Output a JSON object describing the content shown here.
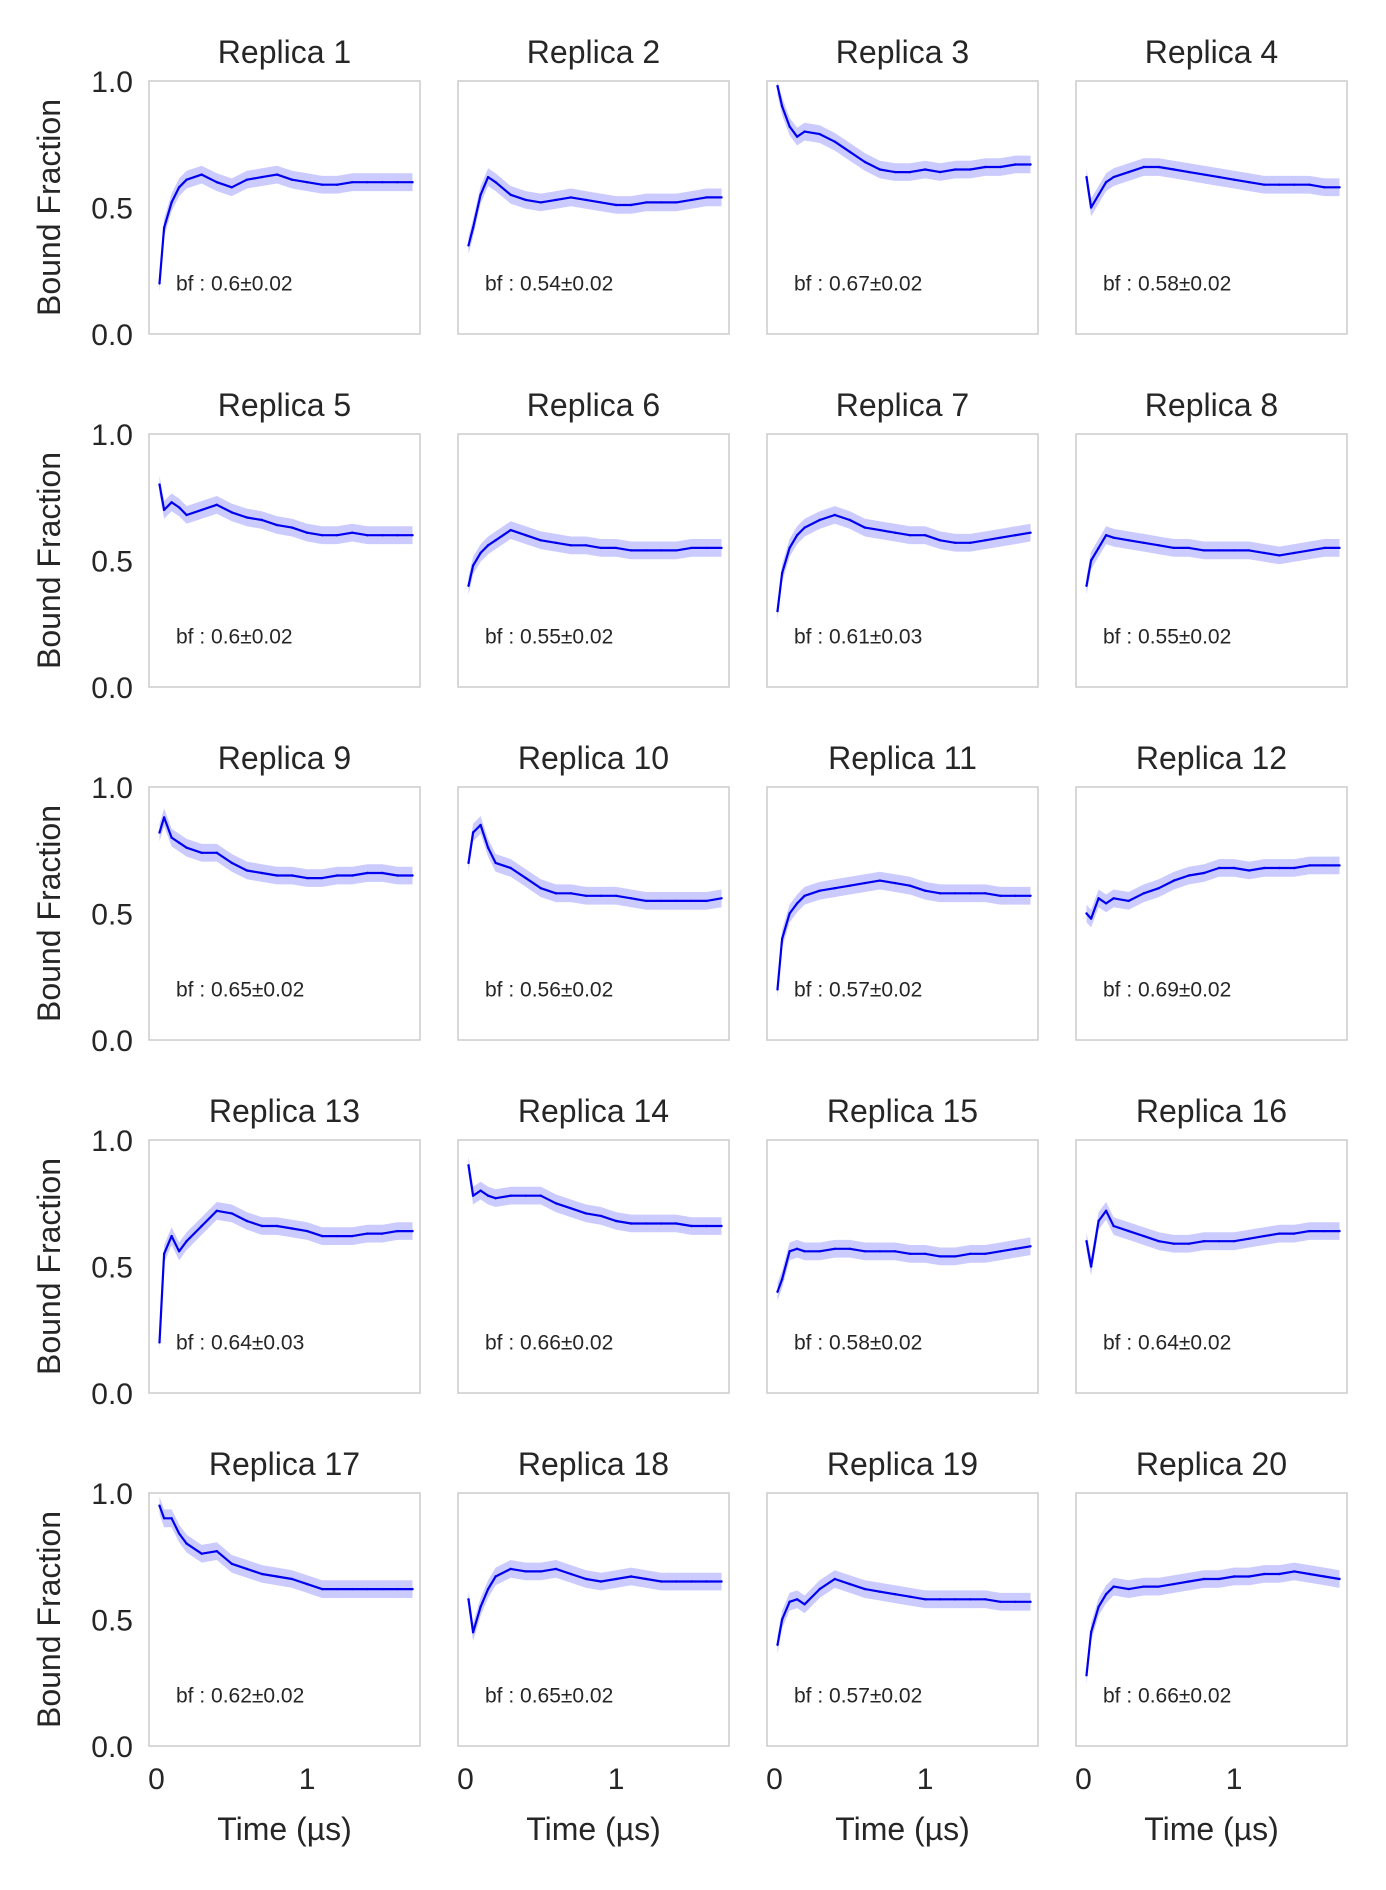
{
  "figure": {
    "ylabel": "Bound Fraction",
    "xlabel": "Time (µs)",
    "line_color": "#0000ee",
    "band_color": "#6b6bff",
    "frame_color": "#cccccc"
  },
  "chart_data": {
    "type": "line",
    "layout": "5x4 grid of small multiples, shared axes",
    "xlim": [
      -0.05,
      1.75
    ],
    "ylim": [
      0.0,
      1.0
    ],
    "xticks": [
      0,
      1
    ],
    "yticks": [
      0.0,
      0.5,
      1.0
    ],
    "xtick_labels": [
      "0",
      "1"
    ],
    "ytick_labels": [
      "0.0",
      "0.5",
      "1.0"
    ],
    "x": [
      0.02,
      0.05,
      0.1,
      0.15,
      0.2,
      0.3,
      0.4,
      0.5,
      0.6,
      0.7,
      0.8,
      0.9,
      1.0,
      1.1,
      1.2,
      1.3,
      1.4,
      1.5,
      1.6,
      1.7
    ],
    "series": [
      {
        "name": "Replica 1",
        "annotation": "bf : 0.6±0.02",
        "y": [
          0.2,
          0.42,
          0.52,
          0.58,
          0.61,
          0.63,
          0.6,
          0.58,
          0.61,
          0.62,
          0.63,
          0.61,
          0.6,
          0.59,
          0.59,
          0.6,
          0.6,
          0.6,
          0.6,
          0.6
        ]
      },
      {
        "name": "Replica 2",
        "annotation": "bf : 0.54±0.02",
        "y": [
          0.35,
          0.42,
          0.55,
          0.62,
          0.6,
          0.55,
          0.53,
          0.52,
          0.53,
          0.54,
          0.53,
          0.52,
          0.51,
          0.51,
          0.52,
          0.52,
          0.52,
          0.53,
          0.54,
          0.54
        ]
      },
      {
        "name": "Replica 3",
        "annotation": "bf : 0.67±0.02",
        "y": [
          0.98,
          0.9,
          0.82,
          0.78,
          0.8,
          0.79,
          0.76,
          0.72,
          0.68,
          0.65,
          0.64,
          0.64,
          0.65,
          0.64,
          0.65,
          0.65,
          0.66,
          0.66,
          0.67,
          0.67
        ]
      },
      {
        "name": "Replica 4",
        "annotation": "bf : 0.58±0.02",
        "y": [
          0.62,
          0.5,
          0.55,
          0.6,
          0.62,
          0.64,
          0.66,
          0.66,
          0.65,
          0.64,
          0.63,
          0.62,
          0.61,
          0.6,
          0.59,
          0.59,
          0.59,
          0.59,
          0.58,
          0.58
        ]
      },
      {
        "name": "Replica 5",
        "annotation": "bf : 0.6±0.02",
        "y": [
          0.8,
          0.7,
          0.73,
          0.71,
          0.68,
          0.7,
          0.72,
          0.69,
          0.67,
          0.66,
          0.64,
          0.63,
          0.61,
          0.6,
          0.6,
          0.61,
          0.6,
          0.6,
          0.6,
          0.6
        ]
      },
      {
        "name": "Replica 6",
        "annotation": "bf : 0.55±0.02",
        "y": [
          0.4,
          0.48,
          0.53,
          0.56,
          0.58,
          0.62,
          0.6,
          0.58,
          0.57,
          0.56,
          0.56,
          0.55,
          0.55,
          0.54,
          0.54,
          0.54,
          0.54,
          0.55,
          0.55,
          0.55
        ]
      },
      {
        "name": "Replica 7",
        "annotation": "bf : 0.61±0.03",
        "y": [
          0.3,
          0.45,
          0.55,
          0.6,
          0.63,
          0.66,
          0.68,
          0.66,
          0.63,
          0.62,
          0.61,
          0.6,
          0.6,
          0.58,
          0.57,
          0.57,
          0.58,
          0.59,
          0.6,
          0.61
        ]
      },
      {
        "name": "Replica 8",
        "annotation": "bf : 0.55±0.02",
        "y": [
          0.4,
          0.5,
          0.55,
          0.6,
          0.59,
          0.58,
          0.57,
          0.56,
          0.55,
          0.55,
          0.54,
          0.54,
          0.54,
          0.54,
          0.53,
          0.52,
          0.53,
          0.54,
          0.55,
          0.55
        ]
      },
      {
        "name": "Replica 9",
        "annotation": "bf : 0.65±0.02",
        "y": [
          0.82,
          0.88,
          0.8,
          0.78,
          0.76,
          0.74,
          0.74,
          0.7,
          0.67,
          0.66,
          0.65,
          0.65,
          0.64,
          0.64,
          0.65,
          0.65,
          0.66,
          0.66,
          0.65,
          0.65
        ]
      },
      {
        "name": "Replica 10",
        "annotation": "bf : 0.56±0.02",
        "y": [
          0.7,
          0.82,
          0.85,
          0.76,
          0.7,
          0.68,
          0.64,
          0.6,
          0.58,
          0.58,
          0.57,
          0.57,
          0.57,
          0.56,
          0.55,
          0.55,
          0.55,
          0.55,
          0.55,
          0.56
        ]
      },
      {
        "name": "Replica 11",
        "annotation": "bf : 0.57±0.02",
        "y": [
          0.2,
          0.4,
          0.5,
          0.54,
          0.57,
          0.59,
          0.6,
          0.61,
          0.62,
          0.63,
          0.62,
          0.61,
          0.59,
          0.58,
          0.58,
          0.58,
          0.58,
          0.57,
          0.57,
          0.57
        ]
      },
      {
        "name": "Replica 12",
        "annotation": "bf : 0.69±0.02",
        "y": [
          0.5,
          0.48,
          0.56,
          0.54,
          0.56,
          0.55,
          0.58,
          0.6,
          0.63,
          0.65,
          0.66,
          0.68,
          0.68,
          0.67,
          0.68,
          0.68,
          0.68,
          0.69,
          0.69,
          0.69
        ]
      },
      {
        "name": "Replica 13",
        "annotation": "bf : 0.64±0.03",
        "y": [
          0.2,
          0.55,
          0.62,
          0.56,
          0.6,
          0.66,
          0.72,
          0.71,
          0.68,
          0.66,
          0.66,
          0.65,
          0.64,
          0.62,
          0.62,
          0.62,
          0.63,
          0.63,
          0.64,
          0.64
        ]
      },
      {
        "name": "Replica 14",
        "annotation": "bf : 0.66±0.02",
        "y": [
          0.9,
          0.78,
          0.8,
          0.78,
          0.77,
          0.78,
          0.78,
          0.78,
          0.75,
          0.73,
          0.71,
          0.7,
          0.68,
          0.67,
          0.67,
          0.67,
          0.67,
          0.66,
          0.66,
          0.66
        ]
      },
      {
        "name": "Replica 15",
        "annotation": "bf : 0.58±0.02",
        "y": [
          0.4,
          0.45,
          0.56,
          0.57,
          0.56,
          0.56,
          0.57,
          0.57,
          0.56,
          0.56,
          0.56,
          0.55,
          0.55,
          0.54,
          0.54,
          0.55,
          0.55,
          0.56,
          0.57,
          0.58
        ]
      },
      {
        "name": "Replica 16",
        "annotation": "bf : 0.64±0.02",
        "y": [
          0.6,
          0.5,
          0.68,
          0.72,
          0.66,
          0.64,
          0.62,
          0.6,
          0.59,
          0.59,
          0.6,
          0.6,
          0.6,
          0.61,
          0.62,
          0.63,
          0.63,
          0.64,
          0.64,
          0.64
        ]
      },
      {
        "name": "Replica 17",
        "annotation": "bf : 0.62±0.02",
        "y": [
          0.95,
          0.9,
          0.9,
          0.84,
          0.8,
          0.76,
          0.77,
          0.72,
          0.7,
          0.68,
          0.67,
          0.66,
          0.64,
          0.62,
          0.62,
          0.62,
          0.62,
          0.62,
          0.62,
          0.62
        ]
      },
      {
        "name": "Replica 18",
        "annotation": "bf : 0.65±0.02",
        "y": [
          0.58,
          0.45,
          0.55,
          0.62,
          0.67,
          0.7,
          0.69,
          0.69,
          0.7,
          0.68,
          0.66,
          0.65,
          0.66,
          0.67,
          0.66,
          0.65,
          0.65,
          0.65,
          0.65,
          0.65
        ]
      },
      {
        "name": "Replica 19",
        "annotation": "bf : 0.57±0.02",
        "y": [
          0.4,
          0.5,
          0.57,
          0.58,
          0.56,
          0.62,
          0.66,
          0.64,
          0.62,
          0.61,
          0.6,
          0.59,
          0.58,
          0.58,
          0.58,
          0.58,
          0.58,
          0.57,
          0.57,
          0.57
        ]
      },
      {
        "name": "Replica 20",
        "annotation": "bf : 0.66±0.02",
        "y": [
          0.28,
          0.45,
          0.55,
          0.6,
          0.63,
          0.62,
          0.63,
          0.63,
          0.64,
          0.65,
          0.66,
          0.66,
          0.67,
          0.67,
          0.68,
          0.68,
          0.69,
          0.68,
          0.67,
          0.66
        ]
      }
    ]
  }
}
